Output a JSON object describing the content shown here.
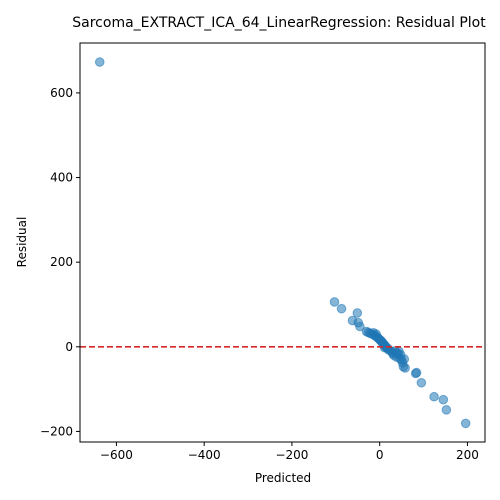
{
  "chart_data": {
    "type": "scatter",
    "title": "Sarcoma_EXTRACT_ICA_64_LinearRegression: Residual Plot",
    "xlabel": "Predicted",
    "ylabel": "Residual",
    "xlim": [
      -683,
      240
    ],
    "ylim": [
      -225,
      718
    ],
    "xticks": [
      -600,
      -400,
      -200,
      0,
      200
    ],
    "yticks": [
      -200,
      0,
      200,
      400,
      600
    ],
    "xtick_labels": [
      "−600",
      "−400",
      "−200",
      "0",
      "200"
    ],
    "ytick_labels": [
      "−200",
      "0",
      "200",
      "400",
      "600"
    ],
    "grid": false,
    "point_color": "#1f77b4",
    "reference_line": {
      "y": 0,
      "color": "#d62728",
      "style": "dashed"
    },
    "points": [
      {
        "x": -638,
        "y": 673
      },
      {
        "x": -103,
        "y": 106
      },
      {
        "x": -87,
        "y": 90
      },
      {
        "x": -51,
        "y": 80
      },
      {
        "x": -62,
        "y": 62
      },
      {
        "x": -49,
        "y": 57
      },
      {
        "x": -45,
        "y": 48
      },
      {
        "x": -30,
        "y": 36
      },
      {
        "x": -26,
        "y": 34
      },
      {
        "x": -22,
        "y": 32
      },
      {
        "x": -18,
        "y": 30
      },
      {
        "x": -14,
        "y": 33
      },
      {
        "x": -12,
        "y": 27
      },
      {
        "x": -9,
        "y": 25
      },
      {
        "x": -8,
        "y": 30
      },
      {
        "x": -5,
        "y": 22
      },
      {
        "x": -3,
        "y": 20
      },
      {
        "x": 0,
        "y": 17
      },
      {
        "x": 2,
        "y": 15
      },
      {
        "x": 4,
        "y": 13
      },
      {
        "x": 6,
        "y": 10
      },
      {
        "x": 8,
        "y": 8
      },
      {
        "x": 10,
        "y": 5
      },
      {
        "x": 12,
        "y": 3
      },
      {
        "x": 14,
        "y": 0
      },
      {
        "x": 11,
        "y": -2
      },
      {
        "x": 16,
        "y": -2
      },
      {
        "x": 18,
        "y": -4
      },
      {
        "x": 20,
        "y": -7
      },
      {
        "x": 24,
        "y": -9
      },
      {
        "x": 28,
        "y": -12
      },
      {
        "x": 30,
        "y": -16
      },
      {
        "x": 32,
        "y": -20
      },
      {
        "x": 35,
        "y": -10
      },
      {
        "x": 38,
        "y": -24
      },
      {
        "x": 40,
        "y": -14
      },
      {
        "x": 42,
        "y": -18
      },
      {
        "x": 44,
        "y": -11
      },
      {
        "x": 46,
        "y": -28
      },
      {
        "x": 48,
        "y": -19
      },
      {
        "x": 50,
        "y": -31
      },
      {
        "x": 52,
        "y": -38
      },
      {
        "x": 54,
        "y": -47
      },
      {
        "x": 56,
        "y": -29
      },
      {
        "x": 58,
        "y": -50
      },
      {
        "x": 82,
        "y": -63
      },
      {
        "x": 84,
        "y": -61
      },
      {
        "x": 95,
        "y": -85
      },
      {
        "x": 124,
        "y": -118
      },
      {
        "x": 145,
        "y": -125
      },
      {
        "x": 152,
        "y": -149
      },
      {
        "x": 196,
        "y": -181
      }
    ]
  }
}
